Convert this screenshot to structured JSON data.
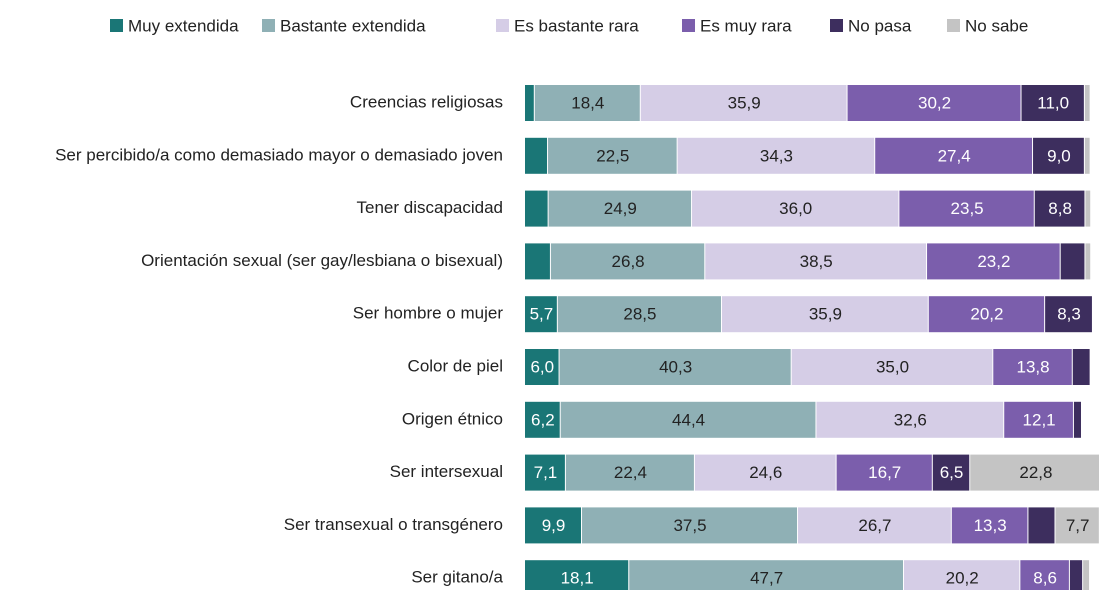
{
  "chart_data": {
    "type": "stacked-bar-horizontal",
    "categories": [
      "Creencias religiosas",
      "Ser percibido/a como demasiado mayor o demasiado joven",
      "Tener discapacidad",
      "Orientación sexual (ser gay/lesbiana o bisexual)",
      "Ser hombre o mujer",
      "Color de piel",
      "Origen étnico ",
      "Ser intersexual",
      "Ser transexual o transgénero",
      "Ser gitano/a"
    ],
    "series": [
      {
        "name": "Muy extendida",
        "color": "#1a7676",
        "values": [
          1.7,
          4.0,
          4.1,
          4.5,
          5.7,
          6.0,
          6.2,
          7.1,
          9.9,
          18.1
        ],
        "value_labels": [
          null,
          null,
          null,
          null,
          "5,7",
          "6,0",
          "6,2",
          "7,1",
          "9,9",
          "18,1"
        ]
      },
      {
        "name": "Bastante extendida",
        "color": "#8fb0b5",
        "values": [
          18.4,
          22.5,
          24.9,
          26.8,
          28.5,
          40.3,
          44.4,
          22.4,
          37.5,
          47.7
        ],
        "value_labels": [
          "18,4",
          "22,5",
          "24,9",
          "26,8",
          "28,5",
          "40,3",
          "44,4",
          "22,4",
          "37,5",
          "47,7"
        ]
      },
      {
        "name": "Es bastante rara",
        "color": "#d5cde6",
        "values": [
          35.9,
          34.3,
          36.0,
          38.5,
          35.9,
          35.0,
          32.6,
          24.6,
          26.7,
          20.2
        ],
        "value_labels": [
          "35,9",
          "34,3",
          "36,0",
          "38,5",
          "35,9",
          "35,0",
          "32,6",
          "24,6",
          "26,7",
          "20,2"
        ]
      },
      {
        "name": "Es muy rara",
        "color": "#7b5eac",
        "values": [
          30.2,
          27.4,
          23.5,
          23.2,
          20.2,
          13.8,
          12.1,
          16.7,
          13.3,
          8.6
        ],
        "value_labels": [
          "30,2",
          "27,4",
          "23,5",
          "23,2",
          "20,2",
          "13,8",
          "12,1",
          "16,7",
          "13,3",
          "8,6"
        ]
      },
      {
        "name": "No pasa",
        "color": "#3d2e5e",
        "values": [
          11.0,
          9.0,
          8.8,
          4.3,
          8.3,
          3.1,
          1.4,
          6.5,
          4.7,
          2.3
        ],
        "value_labels": [
          "11,0",
          "9,0",
          "8,8",
          null,
          "8,3",
          null,
          null,
          "6,5",
          null,
          null
        ]
      },
      {
        "name": "No sabe",
        "color": "#c4c4c4",
        "values": [
          1.0,
          1.0,
          1.0,
          1.0,
          0,
          0,
          0,
          22.8,
          7.7,
          1.2
        ],
        "value_labels": [
          null,
          null,
          null,
          null,
          null,
          null,
          null,
          "22,8",
          "7,7",
          null
        ]
      }
    ]
  }
}
